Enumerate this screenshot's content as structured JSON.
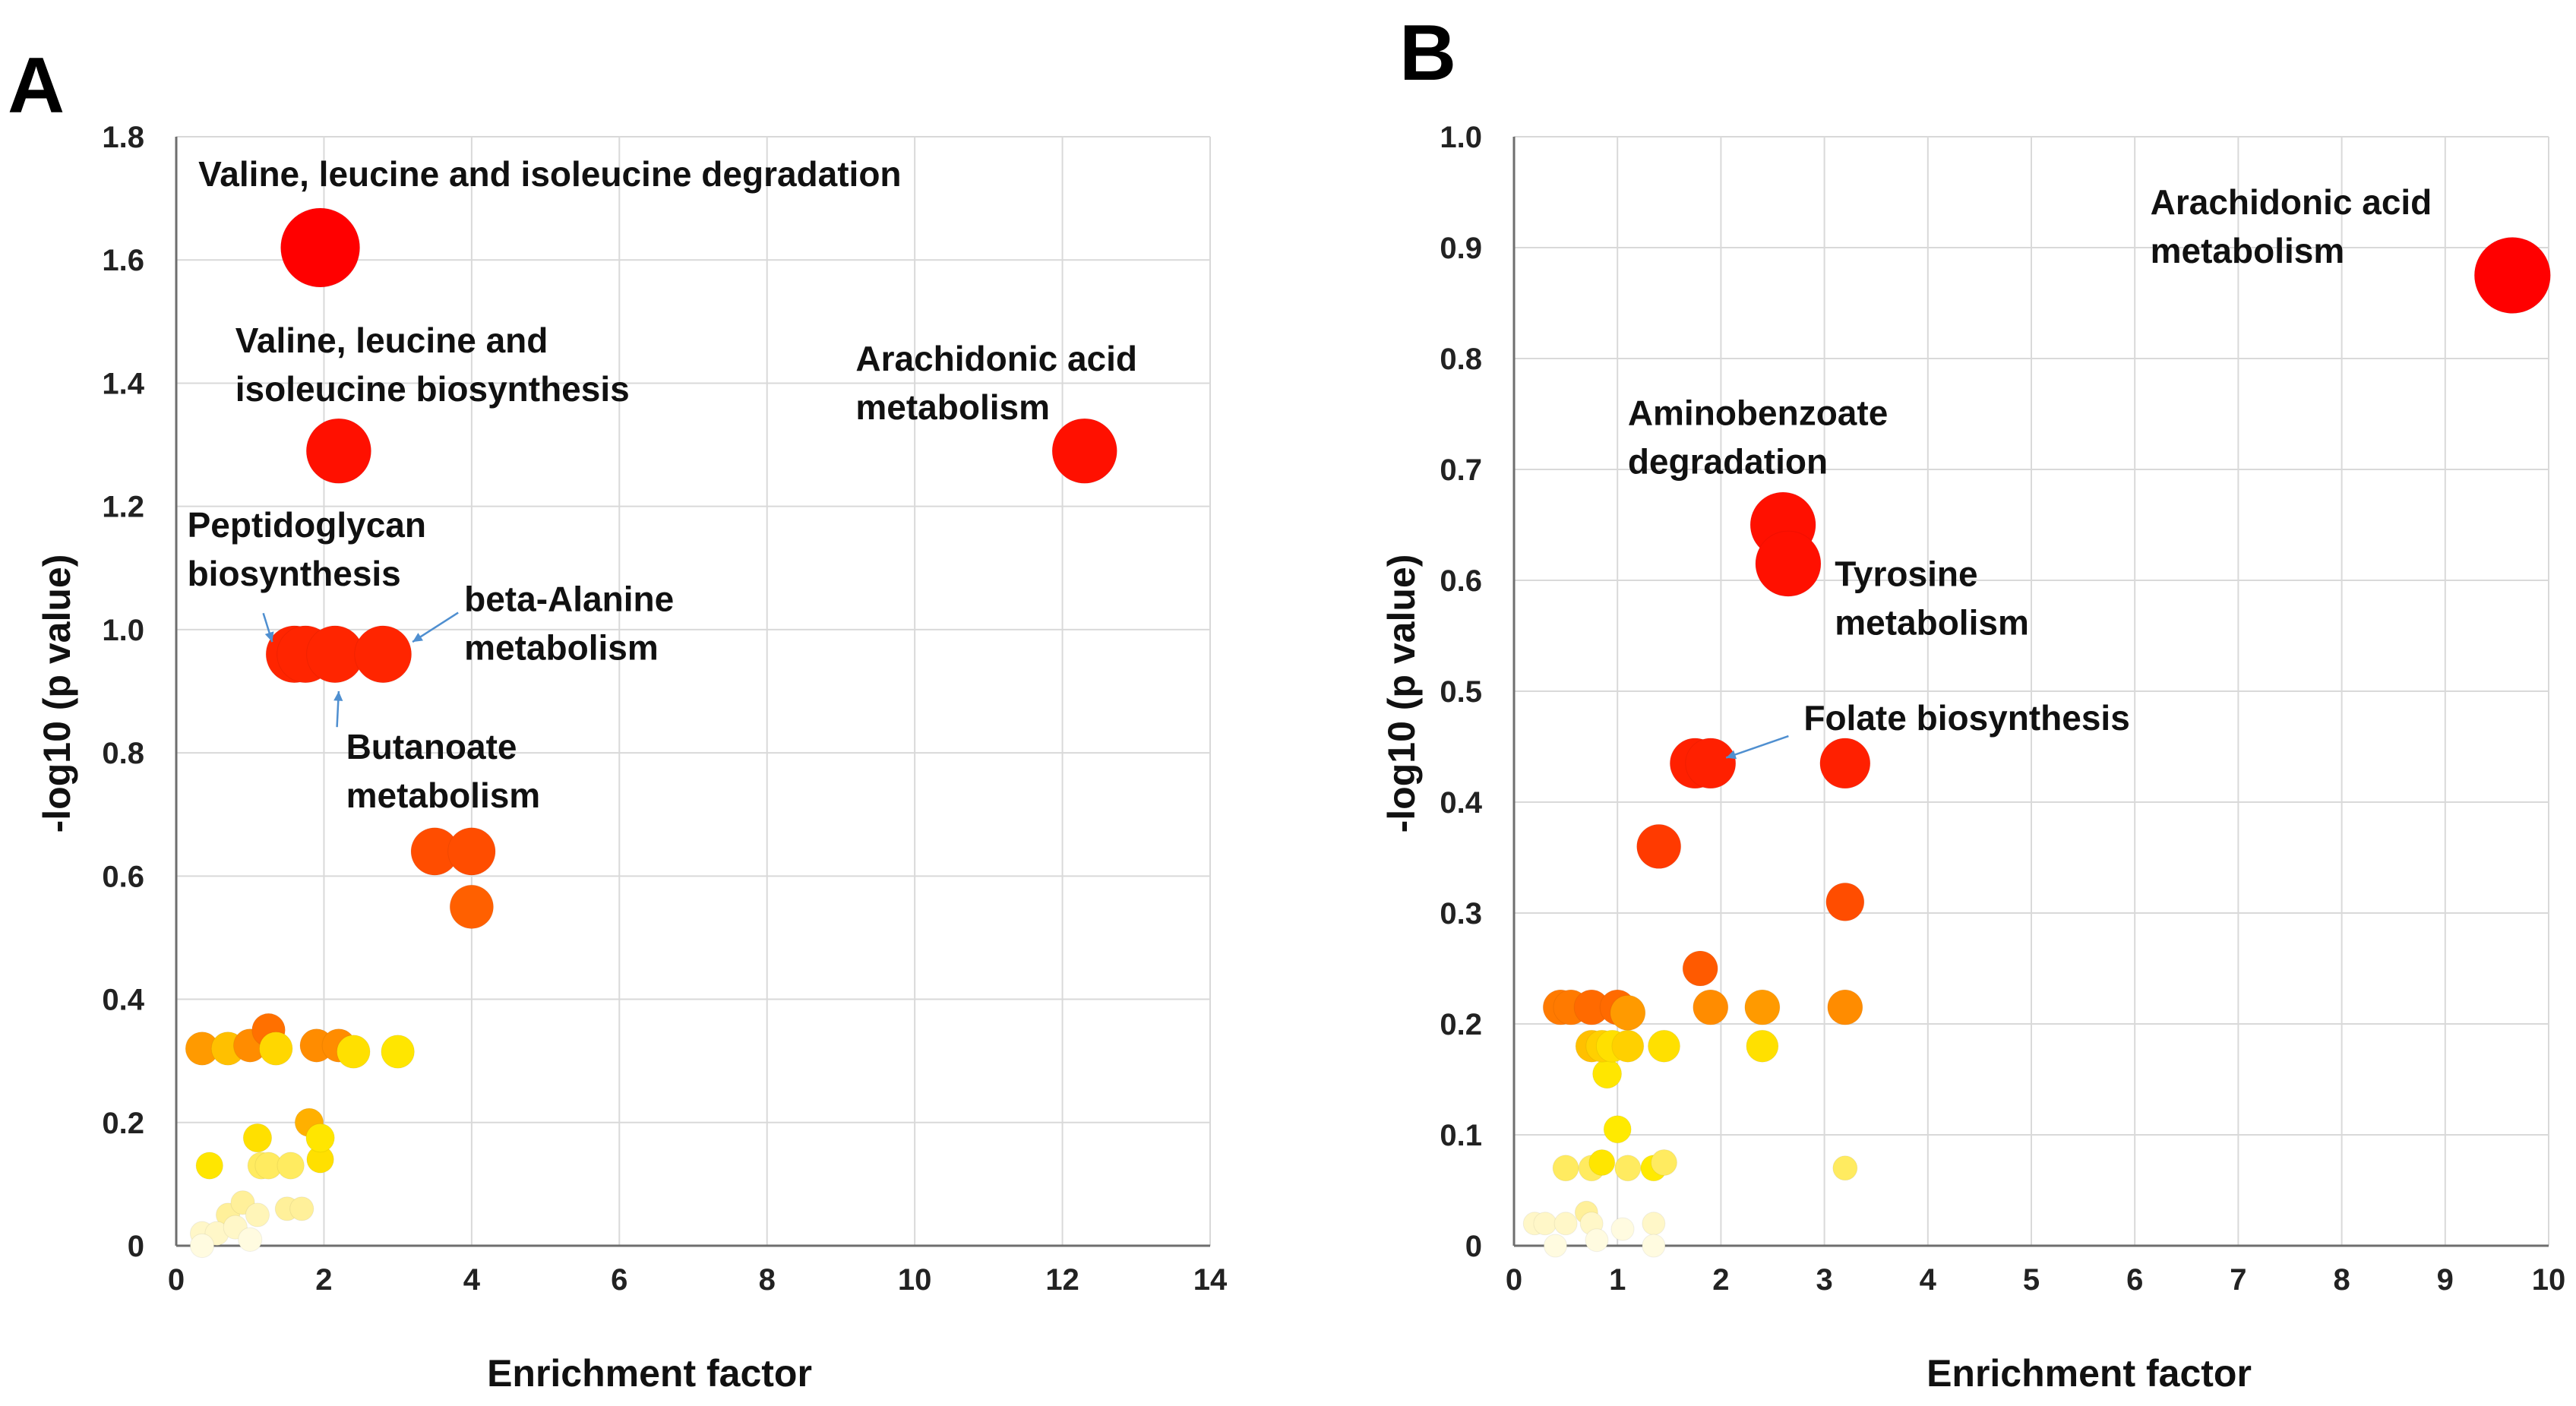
{
  "chart_data": [
    {
      "panel": "A",
      "type": "scatter",
      "title": "",
      "xlabel": "Enrichment factor",
      "ylabel": "-log10 (p value)",
      "xlim": [
        0,
        14
      ],
      "ylim": [
        0,
        1.8
      ],
      "xticks": [
        0,
        2,
        4,
        6,
        8,
        10,
        12,
        14
      ],
      "yticks": [
        0,
        0.2,
        0.4,
        0.6,
        0.8,
        1.0,
        1.2,
        1.4,
        1.6,
        1.8
      ],
      "ytick_labels": [
        "0",
        "0.2",
        "0.4",
        "0.6",
        "0.8",
        "1.0",
        "1.2",
        "1.4",
        "1.6",
        "1.8"
      ],
      "grid": true,
      "points": [
        {
          "x": 1.95,
          "y": 1.62,
          "size": 1.0,
          "color": "#ff0000"
        },
        {
          "x": 2.2,
          "y": 1.29,
          "size": 0.82,
          "color": "#ff1000"
        },
        {
          "x": 12.3,
          "y": 1.29,
          "size": 0.82,
          "color": "#ff1000"
        },
        {
          "x": 1.6,
          "y": 0.96,
          "size": 0.72,
          "color": "#ff2500"
        },
        {
          "x": 1.75,
          "y": 0.96,
          "size": 0.72,
          "color": "#ff2500"
        },
        {
          "x": 2.15,
          "y": 0.96,
          "size": 0.72,
          "color": "#ff2500"
        },
        {
          "x": 2.8,
          "y": 0.96,
          "size": 0.72,
          "color": "#ff2500"
        },
        {
          "x": 3.5,
          "y": 0.64,
          "size": 0.6,
          "color": "#ff4d00"
        },
        {
          "x": 4.0,
          "y": 0.64,
          "size": 0.6,
          "color": "#ff4d00"
        },
        {
          "x": 4.0,
          "y": 0.55,
          "size": 0.55,
          "color": "#ff6000"
        },
        {
          "x": 0.35,
          "y": 0.32,
          "size": 0.42,
          "color": "#ff9a00"
        },
        {
          "x": 0.7,
          "y": 0.32,
          "size": 0.42,
          "color": "#ffc000"
        },
        {
          "x": 1.0,
          "y": 0.325,
          "size": 0.42,
          "color": "#ff8c00"
        },
        {
          "x": 1.25,
          "y": 0.35,
          "size": 0.42,
          "color": "#ff7000"
        },
        {
          "x": 1.35,
          "y": 0.32,
          "size": 0.42,
          "color": "#ffd700"
        },
        {
          "x": 1.9,
          "y": 0.325,
          "size": 0.42,
          "color": "#ff8c00"
        },
        {
          "x": 2.2,
          "y": 0.325,
          "size": 0.42,
          "color": "#ff8c00"
        },
        {
          "x": 2.4,
          "y": 0.315,
          "size": 0.42,
          "color": "#ffe000"
        },
        {
          "x": 3.0,
          "y": 0.315,
          "size": 0.42,
          "color": "#ffe600"
        },
        {
          "x": 1.1,
          "y": 0.175,
          "size": 0.36,
          "color": "#ffe000"
        },
        {
          "x": 1.8,
          "y": 0.2,
          "size": 0.36,
          "color": "#ffb000"
        },
        {
          "x": 1.95,
          "y": 0.175,
          "size": 0.36,
          "color": "#ffe600"
        },
        {
          "x": 0.45,
          "y": 0.13,
          "size": 0.34,
          "color": "#ffe600"
        },
        {
          "x": 1.15,
          "y": 0.13,
          "size": 0.34,
          "color": "#ffeb60"
        },
        {
          "x": 1.25,
          "y": 0.13,
          "size": 0.34,
          "color": "#ffeb60"
        },
        {
          "x": 1.55,
          "y": 0.13,
          "size": 0.34,
          "color": "#ffeb60"
        },
        {
          "x": 1.95,
          "y": 0.14,
          "size": 0.34,
          "color": "#ffe000"
        },
        {
          "x": 0.7,
          "y": 0.05,
          "size": 0.3,
          "color": "#fff09a"
        },
        {
          "x": 0.9,
          "y": 0.07,
          "size": 0.3,
          "color": "#fff09a"
        },
        {
          "x": 1.1,
          "y": 0.05,
          "size": 0.3,
          "color": "#fff5b8"
        },
        {
          "x": 1.5,
          "y": 0.06,
          "size": 0.3,
          "color": "#fff09a"
        },
        {
          "x": 1.7,
          "y": 0.06,
          "size": 0.3,
          "color": "#fff09a"
        },
        {
          "x": 0.35,
          "y": 0.02,
          "size": 0.3,
          "color": "#fff7c8"
        },
        {
          "x": 0.55,
          "y": 0.02,
          "size": 0.3,
          "color": "#fff7c8"
        },
        {
          "x": 0.8,
          "y": 0.03,
          "size": 0.3,
          "color": "#fff7c8"
        },
        {
          "x": 1.0,
          "y": 0.01,
          "size": 0.3,
          "color": "#fffbe0"
        },
        {
          "x": 0.35,
          "y": 0.0,
          "size": 0.3,
          "color": "#fffbe0"
        }
      ],
      "annotations": [
        {
          "lines": [
            "Valine, leucine and isoleucine degradation"
          ],
          "x": 0.3,
          "y": 1.72
        },
        {
          "lines": [
            "Valine, leucine and",
            "isoleucine biosynthesis"
          ],
          "x": 0.8,
          "y": 1.45
        },
        {
          "lines": [
            "Arachidonic acid",
            "metabolism"
          ],
          "x": 9.2,
          "y": 1.42
        },
        {
          "lines": [
            "Peptidoglycan",
            "biosynthesis"
          ],
          "x": 0.15,
          "y": 1.15,
          "arrow_to": [
            1.3,
            0.98
          ]
        },
        {
          "lines": [
            "beta-Alanine",
            "metabolism"
          ],
          "x": 3.9,
          "y": 1.03,
          "arrow_to": [
            3.2,
            0.98
          ]
        },
        {
          "lines": [
            "Butanoate",
            "metabolism"
          ],
          "x": 2.3,
          "y": 0.79,
          "arrow_to": [
            2.2,
            0.9
          ]
        }
      ]
    },
    {
      "panel": "B",
      "type": "scatter",
      "title": "",
      "xlabel": "Enrichment factor",
      "ylabel": "-log10 (p value)",
      "xlim": [
        0,
        10
      ],
      "ylim": [
        0,
        1.0
      ],
      "xticks": [
        0,
        1,
        2,
        3,
        4,
        5,
        6,
        7,
        8,
        9,
        10
      ],
      "yticks": [
        0,
        0.1,
        0.2,
        0.3,
        0.4,
        0.5,
        0.6,
        0.7,
        0.8,
        0.9,
        1.0
      ],
      "ytick_labels": [
        "0",
        "0.1",
        "0.2",
        "0.3",
        "0.4",
        "0.5",
        "0.6",
        "0.7",
        "0.8",
        "0.9",
        "1.0"
      ],
      "grid": true,
      "points": [
        {
          "x": 9.65,
          "y": 0.875,
          "size": 1.0,
          "color": "#ff0000"
        },
        {
          "x": 2.6,
          "y": 0.65,
          "size": 0.86,
          "color": "#ff1000"
        },
        {
          "x": 2.65,
          "y": 0.615,
          "size": 0.86,
          "color": "#ff1000"
        },
        {
          "x": 1.75,
          "y": 0.435,
          "size": 0.66,
          "color": "#ff2000"
        },
        {
          "x": 1.9,
          "y": 0.435,
          "size": 0.66,
          "color": "#ff2000"
        },
        {
          "x": 3.2,
          "y": 0.435,
          "size": 0.66,
          "color": "#ff2000"
        },
        {
          "x": 1.4,
          "y": 0.36,
          "size": 0.58,
          "color": "#ff3a00"
        },
        {
          "x": 3.2,
          "y": 0.31,
          "size": 0.5,
          "color": "#ff4d00"
        },
        {
          "x": 1.8,
          "y": 0.25,
          "size": 0.46,
          "color": "#ff5a00"
        },
        {
          "x": 0.45,
          "y": 0.215,
          "size": 0.46,
          "color": "#ff7a00"
        },
        {
          "x": 0.55,
          "y": 0.215,
          "size": 0.46,
          "color": "#ff7a00"
        },
        {
          "x": 0.75,
          "y": 0.215,
          "size": 0.46,
          "color": "#ff6a00"
        },
        {
          "x": 1.0,
          "y": 0.215,
          "size": 0.46,
          "color": "#ff6a00"
        },
        {
          "x": 1.1,
          "y": 0.21,
          "size": 0.46,
          "color": "#ff9a00"
        },
        {
          "x": 1.9,
          "y": 0.215,
          "size": 0.46,
          "color": "#ff8c00"
        },
        {
          "x": 2.4,
          "y": 0.215,
          "size": 0.46,
          "color": "#ff9a00"
        },
        {
          "x": 3.2,
          "y": 0.215,
          "size": 0.46,
          "color": "#ff8c00"
        },
        {
          "x": 0.75,
          "y": 0.18,
          "size": 0.42,
          "color": "#ffc000"
        },
        {
          "x": 0.85,
          "y": 0.18,
          "size": 0.42,
          "color": "#ffd000"
        },
        {
          "x": 0.95,
          "y": 0.18,
          "size": 0.42,
          "color": "#ffe000"
        },
        {
          "x": 1.1,
          "y": 0.18,
          "size": 0.42,
          "color": "#ffd000"
        },
        {
          "x": 1.45,
          "y": 0.18,
          "size": 0.42,
          "color": "#ffe000"
        },
        {
          "x": 2.4,
          "y": 0.18,
          "size": 0.42,
          "color": "#ffe000"
        },
        {
          "x": 0.9,
          "y": 0.155,
          "size": 0.38,
          "color": "#ffe600"
        },
        {
          "x": 1.0,
          "y": 0.105,
          "size": 0.36,
          "color": "#ffea00"
        },
        {
          "x": 0.5,
          "y": 0.07,
          "size": 0.34,
          "color": "#ffeb60"
        },
        {
          "x": 0.75,
          "y": 0.07,
          "size": 0.34,
          "color": "#ffeb60"
        },
        {
          "x": 0.85,
          "y": 0.075,
          "size": 0.34,
          "color": "#ffe600"
        },
        {
          "x": 1.1,
          "y": 0.07,
          "size": 0.34,
          "color": "#ffeb60"
        },
        {
          "x": 1.35,
          "y": 0.07,
          "size": 0.34,
          "color": "#ffea00"
        },
        {
          "x": 1.45,
          "y": 0.075,
          "size": 0.34,
          "color": "#ffeb60"
        },
        {
          "x": 3.2,
          "y": 0.07,
          "size": 0.32,
          "color": "#ffeb60"
        },
        {
          "x": 0.2,
          "y": 0.02,
          "size": 0.3,
          "color": "#fff7c8"
        },
        {
          "x": 0.3,
          "y": 0.02,
          "size": 0.3,
          "color": "#fff7c8"
        },
        {
          "x": 0.5,
          "y": 0.02,
          "size": 0.3,
          "color": "#fff7c8"
        },
        {
          "x": 0.7,
          "y": 0.03,
          "size": 0.3,
          "color": "#fff09a"
        },
        {
          "x": 0.75,
          "y": 0.02,
          "size": 0.3,
          "color": "#fff7c8"
        },
        {
          "x": 1.05,
          "y": 0.015,
          "size": 0.3,
          "color": "#fffbe0"
        },
        {
          "x": 1.35,
          "y": 0.02,
          "size": 0.3,
          "color": "#fff7c8"
        },
        {
          "x": 0.4,
          "y": 0.0,
          "size": 0.3,
          "color": "#fffbe0"
        },
        {
          "x": 0.8,
          "y": 0.005,
          "size": 0.3,
          "color": "#fffbe0"
        },
        {
          "x": 1.35,
          "y": 0.0,
          "size": 0.3,
          "color": "#fffbe0"
        }
      ],
      "annotations": [
        {
          "lines": [
            "Arachidonic acid",
            "metabolism"
          ],
          "x": 6.15,
          "y": 0.93
        },
        {
          "lines": [
            "Aminobenzoate",
            "degradation"
          ],
          "x": 1.1,
          "y": 0.74
        },
        {
          "lines": [
            "Tyrosine",
            "metabolism"
          ],
          "x": 3.1,
          "y": 0.595
        },
        {
          "lines": [
            "Folate biosynthesis"
          ],
          "x": 2.8,
          "y": 0.465,
          "arrow_to": [
            2.05,
            0.44
          ]
        }
      ]
    }
  ]
}
